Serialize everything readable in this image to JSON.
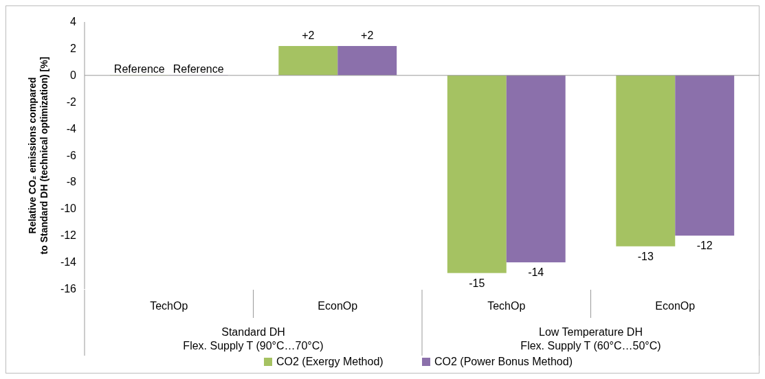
{
  "chart_data": {
    "type": "bar",
    "ylabel": "Relative CO₂ emissions compared to Standard DH (technical optimization) [%]",
    "categories": [
      "TechOp",
      "EconOp",
      "TechOp",
      "EconOp"
    ],
    "series": [
      {
        "name": "CO2 (Exergy Method)",
        "color": "#a5c262",
        "values": [
          0,
          2.2,
          -14.8,
          -12.8
        ],
        "value_labels": [
          "Reference",
          "+2",
          "-15",
          "-13"
        ]
      },
      {
        "name": "CO2 (Power Bonus Method)",
        "color": "#8b70ab",
        "values": [
          0,
          2.2,
          -14,
          -12
        ],
        "value_labels": [
          "Reference",
          "+2",
          "-14",
          "-12"
        ]
      }
    ],
    "annotations": [
      "Standard DH\nFlex. Supply T (90°C…70°C)",
      "Low Temperature DH\nFlex. Supply T (60°C…50°C)"
    ],
    "ylim": [
      -16,
      4
    ],
    "yticks": [
      -16,
      -14,
      -12,
      -10,
      -8,
      -6,
      -4,
      -2,
      0,
      2,
      4
    ],
    "legend": "bottom"
  }
}
